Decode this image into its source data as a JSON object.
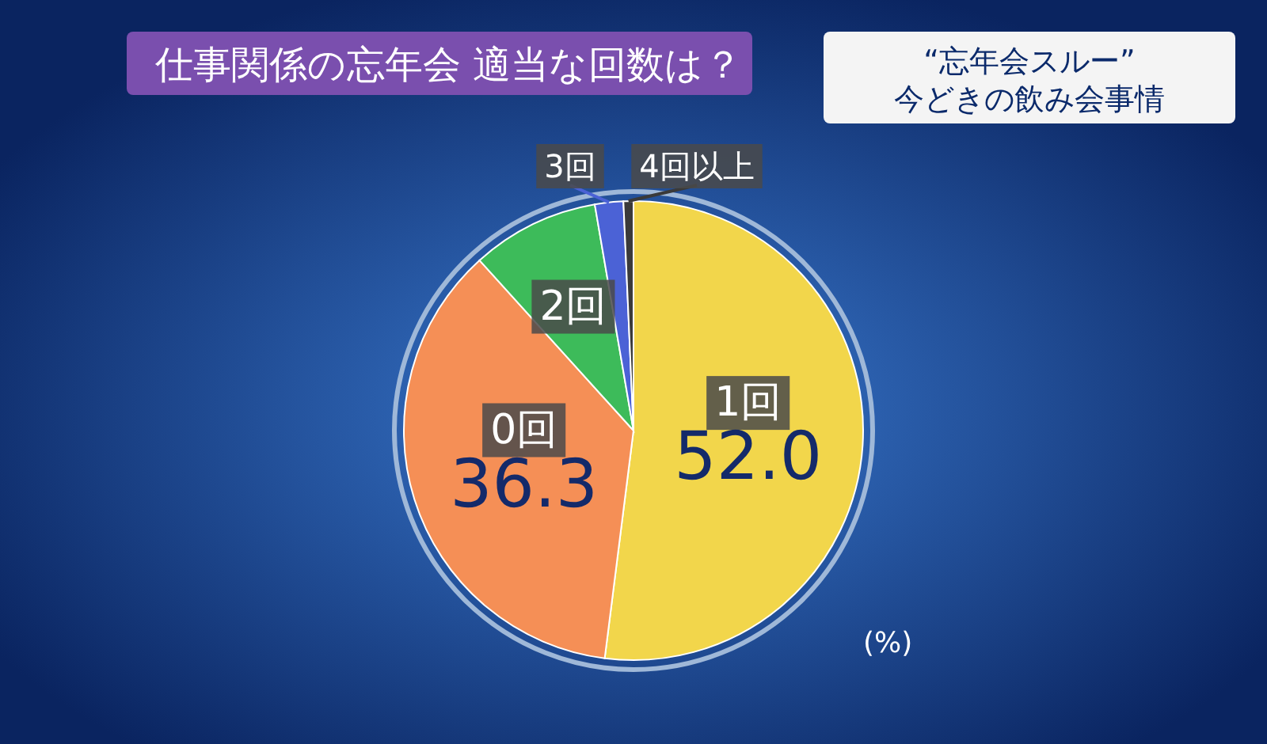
{
  "chart_data": {
    "type": "pie",
    "title": "仕事関係の忘年会  適当な回数は？",
    "subtitle": "“忘年会スルー”\n今どきの飲み会事情",
    "categories": [
      "1回",
      "0回",
      "2回",
      "3回",
      "4回以上"
    ],
    "values": [
      52.0,
      36.3,
      9.0,
      2.0,
      0.7
    ],
    "value_labels": [
      "52.0",
      "36.3",
      null,
      null,
      null
    ],
    "colors": [
      "#f2d64b",
      "#f58f56",
      "#3dbb5a",
      "#4b62d6",
      "#3a3a3a"
    ],
    "annotations": [
      "(%)"
    ]
  }
}
